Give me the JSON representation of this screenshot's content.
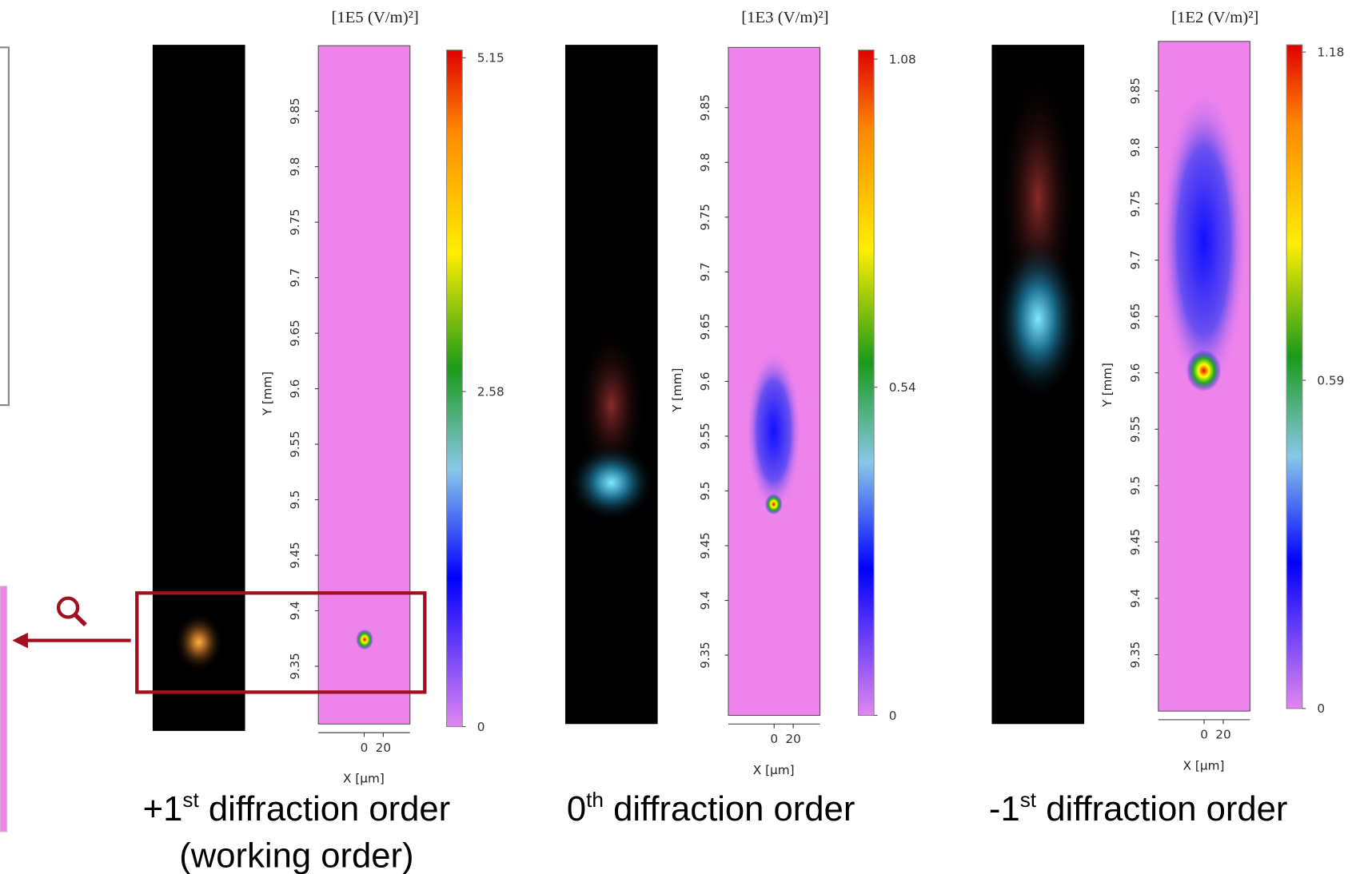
{
  "panels": [
    {
      "unit": "[1E5 (V/m)²]",
      "y_label": "Y [mm]",
      "x_label": "X [µm]",
      "ylim": [
        9.298,
        9.909
      ],
      "yticks": [
        9.35,
        9.4,
        9.45,
        9.5,
        9.55,
        9.6,
        9.65,
        9.7,
        9.75,
        9.8,
        9.85
      ],
      "xlim": [
        -48,
        48
      ],
      "xticks": [
        0,
        20
      ],
      "colorbar_lim": [
        0,
        5.21
      ],
      "colorbar_ticks": [
        0,
        2.58,
        5.15
      ],
      "caption": {
        "prefix": "+1",
        "sup": "st",
        "rest": " diffraction order",
        "line2": "(working order)"
      }
    },
    {
      "unit": "[1E3 (V/m)²]",
      "y_label": "Y [mm]",
      "x_label": "X [µm]",
      "ylim": [
        9.295,
        9.905
      ],
      "yticks": [
        9.35,
        9.4,
        9.45,
        9.5,
        9.55,
        9.6,
        9.65,
        9.7,
        9.75,
        9.8,
        9.85
      ],
      "xlim": [
        -48,
        48
      ],
      "xticks": [
        0,
        20
      ],
      "colorbar_lim": [
        0,
        1.095
      ],
      "colorbar_ticks": [
        0,
        0.54,
        1.08
      ],
      "caption": {
        "prefix": "0",
        "sup": "th",
        "rest": " diffraction order"
      }
    },
    {
      "unit": "[1E2 (V/m)²]",
      "y_label": "Y [mm]",
      "x_label": "X [µm]",
      "ylim": [
        9.3,
        9.894
      ],
      "yticks": [
        9.35,
        9.4,
        9.45,
        9.5,
        9.55,
        9.6,
        9.65,
        9.7,
        9.75,
        9.8,
        9.85
      ],
      "xlim": [
        -48,
        48
      ],
      "xticks": [
        0,
        20
      ],
      "colorbar_lim": [
        0,
        1.193
      ],
      "colorbar_ticks": [
        0,
        0.59,
        1.18
      ],
      "caption": {
        "prefix": "-1",
        "sup": "st",
        "rest": " diffraction order"
      }
    }
  ]
}
